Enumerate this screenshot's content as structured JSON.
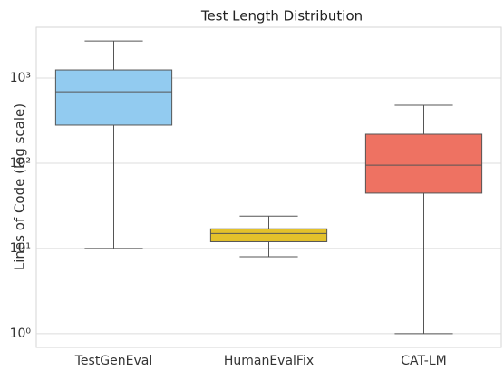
{
  "chart_data": {
    "type": "box",
    "title": "Test Length Distribution",
    "ylabel": "Lines of Code (log scale)",
    "categories": [
      "TestGenEval",
      "HumanEvalFix",
      "CAT-LM"
    ],
    "colors": [
      "#92cbf0",
      "#e3c12b",
      "#ee7262"
    ],
    "boxes": [
      {
        "whislo": 10,
        "q1": 280,
        "med": 692,
        "q3": 1247,
        "whishi": 2730
      },
      {
        "whislo": 8,
        "q1": 12,
        "med": 15,
        "q3": 17,
        "whishi": 24
      },
      {
        "whislo": 1,
        "q1": 44.6,
        "med": 95,
        "q3": 219,
        "whishi": 480
      }
    ],
    "ylim": [
      0.69,
      3950
    ],
    "log_y": true,
    "yticks": [
      {
        "value": 1,
        "label": "10⁰"
      },
      {
        "value": 10,
        "label": "10¹"
      },
      {
        "value": 100,
        "label": "10²"
      },
      {
        "value": 1000,
        "label": "10³"
      }
    ],
    "grid": true
  }
}
